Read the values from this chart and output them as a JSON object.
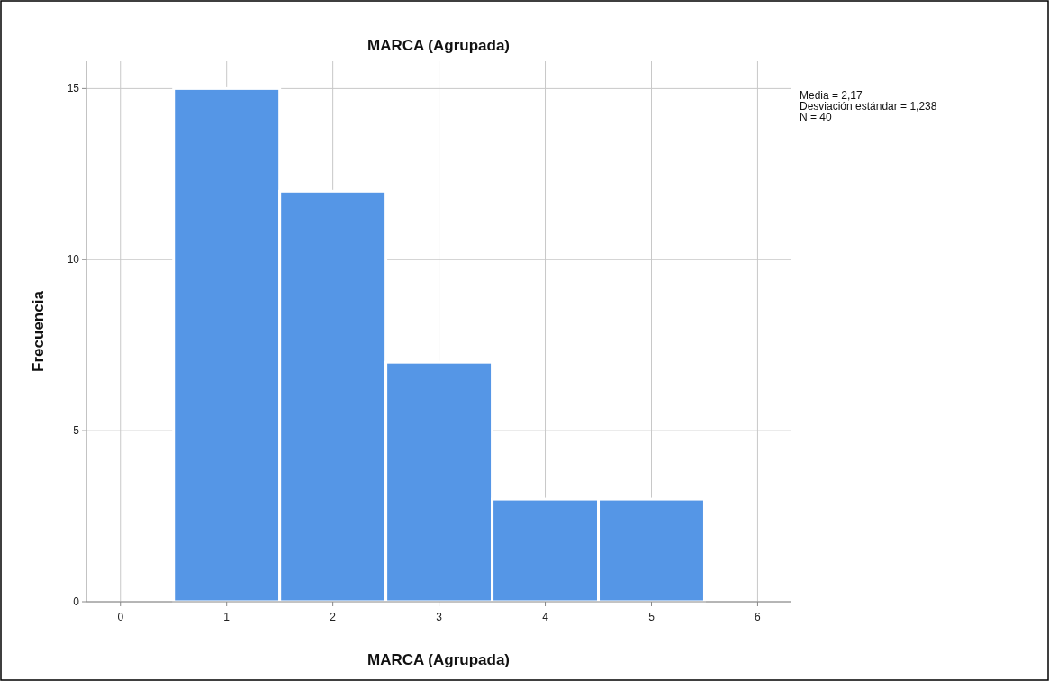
{
  "chart_data": {
    "type": "histogram",
    "title": "MARCA (Agrupada)",
    "xlabel": "MARCA (Agrupada)",
    "ylabel": "Frecuencia",
    "bins": [
      0.5,
      1.5,
      2.5,
      3.5,
      4.5,
      5.5
    ],
    "values": [
      15,
      12,
      7,
      3,
      3
    ],
    "color": "#5596e6",
    "xlim": [
      -0.32,
      6.31
    ],
    "xticks": [
      0,
      1,
      2,
      3,
      4,
      5,
      6
    ],
    "ylim": [
      0,
      15.8
    ],
    "yticks": [
      0,
      5,
      10,
      15
    ],
    "grid": true,
    "annotations": [
      "Media = 2,17",
      "Desviación estándar = 1,238",
      "N = 40"
    ]
  }
}
